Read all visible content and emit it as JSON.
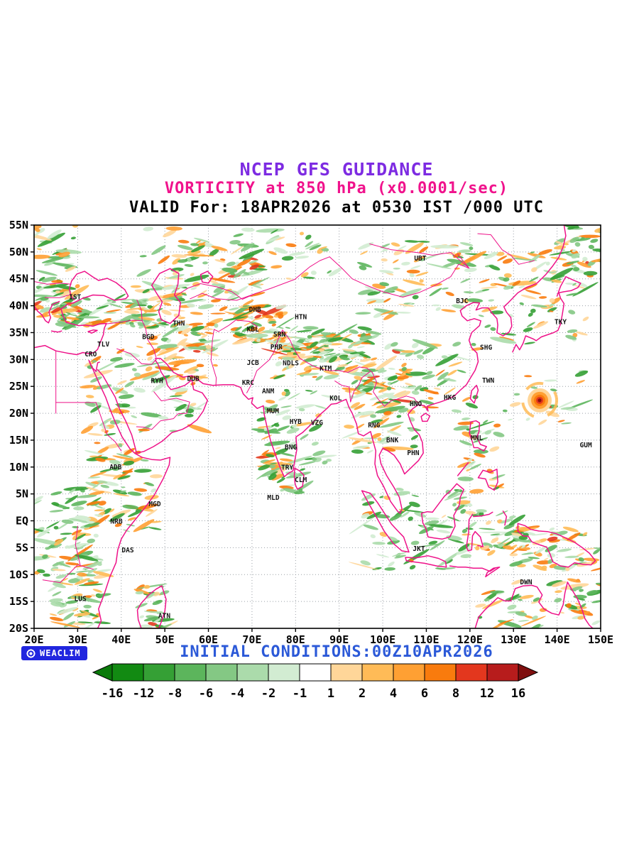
{
  "header": {
    "title": "NCEP GFS GUIDANCE",
    "subtitle": "VORTICITY at 850 hPa (x0.0001/sec)",
    "valid_line": "VALID For: 18APR2026 at 0530 IST /000 UTC"
  },
  "footer": {
    "logo_text": "WEACLIM",
    "initial_conditions": "INITIAL CONDITIONS:00Z10APR2026"
  },
  "colors": {
    "title": "#7d2be2",
    "subtitle": "#f0128c",
    "valid_text": "#000000",
    "footer_text": "#2b59d8",
    "coastline": "#ee1289",
    "grid": "#9aa0a6",
    "logo_bg": "#2126df",
    "frame": "#000000"
  },
  "chart_data": {
    "type": "heatmap",
    "title": "VORTICITY at 850 hPa (x0.0001/sec)",
    "model": "NCEP GFS GUIDANCE",
    "valid_time": "18APR2026 at 0530 IST /000 UTC",
    "initial_conditions": "00Z10APR2026",
    "units": "x0.0001/sec",
    "x_axis": {
      "range_deg": [
        20,
        150
      ],
      "ticks": [
        "20E",
        "30E",
        "40E",
        "50E",
        "60E",
        "70E",
        "80E",
        "90E",
        "100E",
        "110E",
        "120E",
        "130E",
        "140E",
        "150E"
      ]
    },
    "y_axis": {
      "range_deg": [
        -20,
        55
      ],
      "ticks": [
        "55N",
        "50N",
        "45N",
        "40N",
        "35N",
        "30N",
        "25N",
        "20N",
        "15N",
        "10N",
        "5N",
        "EQ",
        "5S",
        "10S",
        "15S",
        "20S"
      ]
    },
    "colorbar": {
      "levels": [
        "-16",
        "-12",
        "-8",
        "-6",
        "-4",
        "-2",
        "-1",
        "1",
        "2",
        "4",
        "6",
        "8",
        "12",
        "16"
      ],
      "segment_colors": [
        "#128a12",
        "#35a035",
        "#5cb55c",
        "#84c884",
        "#abdbab",
        "#d2ecd2",
        "#ffffff",
        "#ffd699",
        "#ffbb57",
        "#ffa033",
        "#f97b0d",
        "#e3371e",
        "#b71c1c"
      ],
      "arrow_left_color": "#0a7a0a",
      "arrow_right_color": "#7f0f0f"
    },
    "vorticity_max_center": {
      "lon": 136,
      "lat": 22.4
    },
    "stations": [
      {
        "id": "IST",
        "lon": 29.4,
        "lat": 41.2
      },
      {
        "id": "TLV",
        "lon": 35.9,
        "lat": 32.4
      },
      {
        "id": "CRO",
        "lon": 33.0,
        "lat": 30.6
      },
      {
        "id": "BGD",
        "lon": 46.2,
        "lat": 33.8
      },
      {
        "id": "THN",
        "lon": 53.2,
        "lat": 36.3
      },
      {
        "id": "RYH",
        "lon": 48.2,
        "lat": 25.6
      },
      {
        "id": "DUB",
        "lon": 56.5,
        "lat": 26.0
      },
      {
        "id": "DHB",
        "lon": 70.7,
        "lat": 38.9
      },
      {
        "id": "KBL",
        "lon": 70.2,
        "lat": 35.2
      },
      {
        "id": "SRN",
        "lon": 76.3,
        "lat": 34.3
      },
      {
        "id": "PHR",
        "lon": 75.6,
        "lat": 31.9
      },
      {
        "id": "JCB",
        "lon": 70.2,
        "lat": 29.0
      },
      {
        "id": "NDLS",
        "lon": 78.9,
        "lat": 28.9
      },
      {
        "id": "KRC",
        "lon": 69.1,
        "lat": 25.3
      },
      {
        "id": "ANM",
        "lon": 73.7,
        "lat": 23.7
      },
      {
        "id": "MUM",
        "lon": 74.8,
        "lat": 20.0
      },
      {
        "id": "HYB",
        "lon": 80.0,
        "lat": 18.0
      },
      {
        "id": "VZG",
        "lon": 84.9,
        "lat": 17.8
      },
      {
        "id": "KOL",
        "lon": 89.2,
        "lat": 22.4
      },
      {
        "id": "KTM",
        "lon": 86.9,
        "lat": 27.9
      },
      {
        "id": "HTN",
        "lon": 81.2,
        "lat": 37.5
      },
      {
        "id": "RNG",
        "lon": 98.0,
        "lat": 17.4
      },
      {
        "id": "BNK",
        "lon": 102.2,
        "lat": 14.6
      },
      {
        "id": "PHN",
        "lon": 107.0,
        "lat": 12.2
      },
      {
        "id": "HNO",
        "lon": 107.6,
        "lat": 21.3
      },
      {
        "id": "HKG",
        "lon": 115.4,
        "lat": 22.5
      },
      {
        "id": "TWN",
        "lon": 124.2,
        "lat": 25.7
      },
      {
        "id": "SHG",
        "lon": 123.7,
        "lat": 31.8
      },
      {
        "id": "BJC",
        "lon": 118.2,
        "lat": 40.5
      },
      {
        "id": "UBT",
        "lon": 108.6,
        "lat": 48.4
      },
      {
        "id": "TKY",
        "lon": 140.8,
        "lat": 36.6
      },
      {
        "id": "MNL",
        "lon": 121.6,
        "lat": 15.0
      },
      {
        "id": "GUM",
        "lon": 146.6,
        "lat": 13.7
      },
      {
        "id": "BNG",
        "lon": 78.9,
        "lat": 13.3
      },
      {
        "id": "TRY",
        "lon": 78.1,
        "lat": 9.5
      },
      {
        "id": "CLM",
        "lon": 81.2,
        "lat": 7.2
      },
      {
        "id": "MLD",
        "lon": 74.9,
        "lat": 3.9
      },
      {
        "id": "ADB",
        "lon": 38.7,
        "lat": 9.6
      },
      {
        "id": "MGD",
        "lon": 47.7,
        "lat": 2.7
      },
      {
        "id": "NRB",
        "lon": 38.9,
        "lat": -0.5
      },
      {
        "id": "DAS",
        "lon": 41.5,
        "lat": -5.9
      },
      {
        "id": "LUS",
        "lon": 30.6,
        "lat": -14.9
      },
      {
        "id": "ATN",
        "lon": 49.9,
        "lat": -18.1
      },
      {
        "id": "JKT",
        "lon": 108.3,
        "lat": -5.6
      },
      {
        "id": "DWN",
        "lon": 132.9,
        "lat": -11.8
      }
    ]
  }
}
